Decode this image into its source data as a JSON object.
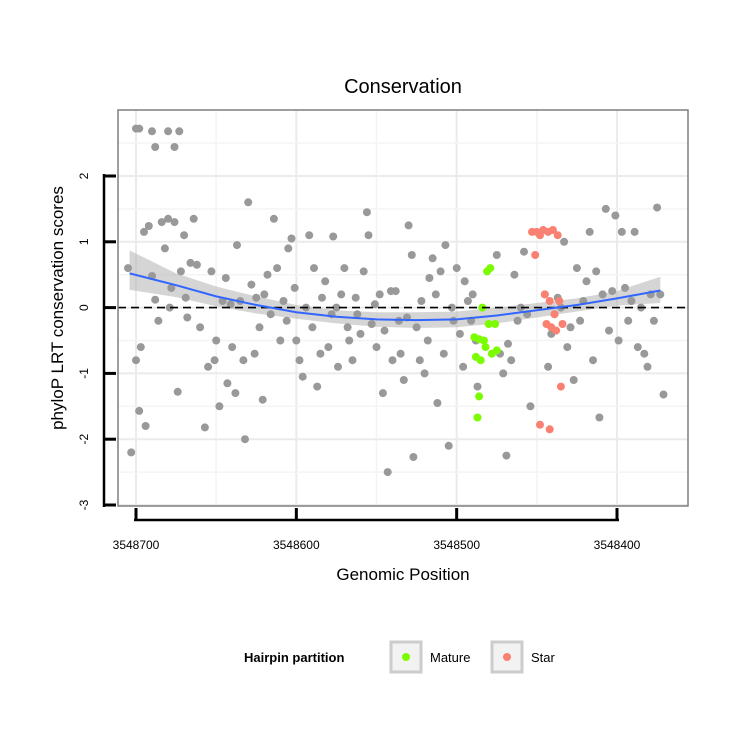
{
  "chart_data": {
    "type": "scatter",
    "title": "Conservation",
    "xlabel": "Genomic Position",
    "ylabel": "phyloP LRT conservation scores",
    "x_reversed": true,
    "xlim": [
      3548700,
      3548400
    ],
    "x_ticks": [
      3548700,
      3548600,
      3548500,
      3548400
    ],
    "x_tick_labels": [
      "3548700",
      "3548600",
      "3548500",
      "3548400"
    ],
    "y_ticks": [
      -3,
      -2,
      -1,
      0,
      1,
      2
    ],
    "y_tick_labels": [
      "-3",
      "-2",
      "-1",
      "0",
      "1",
      "2"
    ],
    "ylim": [
      -3,
      3
    ],
    "grid": true,
    "reference_line": {
      "y": 0,
      "style": "dashed"
    },
    "smooth": {
      "x": [
        3548704,
        3548675,
        3548650,
        3548625,
        3548600,
        3548575,
        3548550,
        3548525,
        3548500,
        3548475,
        3548450,
        3548425,
        3548400,
        3548373
      ],
      "y": [
        0.52,
        0.34,
        0.17,
        0.04,
        -0.07,
        -0.14,
        -0.18,
        -0.19,
        -0.18,
        -0.12,
        -0.04,
        0.04,
        0.14,
        0.26
      ],
      "band_lower": [
        0.27,
        0.16,
        0.02,
        -0.09,
        -0.17,
        -0.24,
        -0.29,
        -0.31,
        -0.3,
        -0.24,
        -0.15,
        -0.06,
        0.03,
        0.07
      ],
      "band_upper": [
        0.87,
        0.52,
        0.32,
        0.17,
        0.04,
        -0.04,
        -0.07,
        -0.07,
        -0.06,
        0.0,
        0.07,
        0.14,
        0.25,
        0.47
      ],
      "color": "#3366FF"
    },
    "legend": {
      "title": "Hairpin partition",
      "placement": "bottom",
      "items": [
        {
          "label": "Mature",
          "color": "#7CFC00"
        },
        {
          "label": "Star",
          "color": "#FA8072"
        }
      ]
    },
    "series": [
      {
        "partition": "other",
        "color": "#999999",
        "points": [
          [
            3548700,
            2.72
          ],
          [
            3548698,
            2.72
          ],
          [
            3548690,
            2.68
          ],
          [
            3548688,
            2.44
          ],
          [
            3548680,
            2.68
          ],
          [
            3548676,
            2.44
          ],
          [
            3548673,
            2.68
          ],
          [
            3548705,
            0.6
          ],
          [
            3548703,
            -2.2
          ],
          [
            3548700,
            -0.8
          ],
          [
            3548698,
            -1.57
          ],
          [
            3548697,
            -0.6
          ],
          [
            3548695,
            1.15
          ],
          [
            3548692,
            1.24
          ],
          [
            3548694,
            -1.8
          ],
          [
            3548690,
            0.48
          ],
          [
            3548688,
            0.12
          ],
          [
            3548686,
            -0.2
          ],
          [
            3548684,
            1.3
          ],
          [
            3548682,
            0.9
          ],
          [
            3548680,
            1.35
          ],
          [
            3548679,
            0.0
          ],
          [
            3548678,
            0.3
          ],
          [
            3548676,
            1.3
          ],
          [
            3548674,
            -1.28
          ],
          [
            3548672,
            0.55
          ],
          [
            3548670,
            1.1
          ],
          [
            3548669,
            0.15
          ],
          [
            3548668,
            -0.15
          ],
          [
            3548666,
            0.68
          ],
          [
            3548664,
            1.35
          ],
          [
            3548662,
            0.65
          ],
          [
            3548660,
            -0.3
          ],
          [
            3548657,
            -1.82
          ],
          [
            3548655,
            -0.9
          ],
          [
            3548653,
            0.55
          ],
          [
            3548651,
            -0.8
          ],
          [
            3548650,
            -0.5
          ],
          [
            3548648,
            -1.5
          ],
          [
            3548646,
            0.1
          ],
          [
            3548644,
            0.45
          ],
          [
            3548643,
            -1.15
          ],
          [
            3548641,
            0.05
          ],
          [
            3548640,
            -0.6
          ],
          [
            3548638,
            -1.3
          ],
          [
            3548637,
            0.95
          ],
          [
            3548635,
            0.1
          ],
          [
            3548633,
            -0.8
          ],
          [
            3548632,
            -2.0
          ],
          [
            3548630,
            1.6
          ],
          [
            3548628,
            0.35
          ],
          [
            3548626,
            -0.7
          ],
          [
            3548625,
            0.15
          ],
          [
            3548623,
            -0.3
          ],
          [
            3548621,
            -1.4
          ],
          [
            3548620,
            0.2
          ],
          [
            3548618,
            0.5
          ],
          [
            3548616,
            -0.1
          ],
          [
            3548614,
            1.35
          ],
          [
            3548612,
            0.6
          ],
          [
            3548610,
            -0.5
          ],
          [
            3548608,
            0.1
          ],
          [
            3548606,
            -0.2
          ],
          [
            3548605,
            0.9
          ],
          [
            3548603,
            1.05
          ],
          [
            3548601,
            0.3
          ],
          [
            3548600,
            -0.5
          ],
          [
            3548598,
            -0.8
          ],
          [
            3548596,
            -1.05
          ],
          [
            3548594,
            0.0
          ],
          [
            3548592,
            1.1
          ],
          [
            3548590,
            -0.3
          ],
          [
            3548589,
            0.6
          ],
          [
            3548587,
            -1.2
          ],
          [
            3548585,
            -0.7
          ],
          [
            3548584,
            0.15
          ],
          [
            3548582,
            0.4
          ],
          [
            3548580,
            -0.6
          ],
          [
            3548578,
            -0.1
          ],
          [
            3548577,
            1.08
          ],
          [
            3548575,
            0.0
          ],
          [
            3548574,
            -0.9
          ],
          [
            3548572,
            0.2
          ],
          [
            3548570,
            0.6
          ],
          [
            3548568,
            -0.3
          ],
          [
            3548567,
            -0.5
          ],
          [
            3548565,
            -0.8
          ],
          [
            3548563,
            0.15
          ],
          [
            3548562,
            -0.1
          ],
          [
            3548560,
            -0.4
          ],
          [
            3548558,
            0.55
          ],
          [
            3548556,
            1.45
          ],
          [
            3548555,
            1.1
          ],
          [
            3548553,
            -0.25
          ],
          [
            3548551,
            0.05
          ],
          [
            3548550,
            -0.6
          ],
          [
            3548548,
            0.2
          ],
          [
            3548546,
            -1.3
          ],
          [
            3548545,
            -0.35
          ],
          [
            3548543,
            -2.5
          ],
          [
            3548541,
            0.25
          ],
          [
            3548540,
            -0.8
          ],
          [
            3548538,
            0.25
          ],
          [
            3548536,
            -0.2
          ],
          [
            3548535,
            -0.7
          ],
          [
            3548533,
            -1.1
          ],
          [
            3548531,
            -0.15
          ],
          [
            3548530,
            1.25
          ],
          [
            3548528,
            0.8
          ],
          [
            3548527,
            -2.27
          ],
          [
            3548525,
            -0.3
          ],
          [
            3548523,
            -0.8
          ],
          [
            3548522,
            0.1
          ],
          [
            3548520,
            -1.0
          ],
          [
            3548518,
            -0.5
          ],
          [
            3548517,
            0.45
          ],
          [
            3548515,
            0.75
          ],
          [
            3548513,
            0.2
          ],
          [
            3548512,
            -1.45
          ],
          [
            3548510,
            0.55
          ],
          [
            3548508,
            -0.7
          ],
          [
            3548507,
            0.95
          ],
          [
            3548505,
            -2.1
          ],
          [
            3548503,
            0.0
          ],
          [
            3548502,
            -0.2
          ],
          [
            3548500,
            0.6
          ],
          [
            3548498,
            -0.4
          ],
          [
            3548496,
            -0.9
          ],
          [
            3548495,
            0.4
          ],
          [
            3548493,
            0.1
          ],
          [
            3548491,
            -0.2
          ],
          [
            3548490,
            0.2
          ],
          [
            3548488,
            -0.5
          ],
          [
            3548487,
            -1.2
          ],
          [
            3548475,
            0.8
          ],
          [
            3548473,
            -0.7
          ],
          [
            3548471,
            -1.0
          ],
          [
            3548469,
            -2.25
          ],
          [
            3548468,
            -0.55
          ],
          [
            3548466,
            -0.8
          ],
          [
            3548464,
            0.5
          ],
          [
            3548462,
            -0.2
          ],
          [
            3548460,
            0.0
          ],
          [
            3548458,
            0.85
          ],
          [
            3548456,
            -0.1
          ],
          [
            3548454,
            -1.5
          ],
          [
            3548445,
            0.2
          ],
          [
            3548443,
            -0.9
          ],
          [
            3548441,
            -0.4
          ],
          [
            3548439,
            -0.1
          ],
          [
            3548437,
            0.15
          ],
          [
            3548435,
            0.0
          ],
          [
            3548433,
            1.0
          ],
          [
            3548431,
            -0.6
          ],
          [
            3548429,
            -0.3
          ],
          [
            3548427,
            -1.1
          ],
          [
            3548425,
            0.6
          ],
          [
            3548423,
            -0.2
          ],
          [
            3548421,
            0.1
          ],
          [
            3548419,
            0.4
          ],
          [
            3548417,
            1.15
          ],
          [
            3548415,
            -0.8
          ],
          [
            3548413,
            0.55
          ],
          [
            3548411,
            -1.67
          ],
          [
            3548409,
            0.2
          ],
          [
            3548407,
            1.5
          ],
          [
            3548405,
            -0.35
          ],
          [
            3548403,
            0.25
          ],
          [
            3548401,
            1.4
          ],
          [
            3548399,
            -0.5
          ],
          [
            3548397,
            1.15
          ],
          [
            3548395,
            0.3
          ],
          [
            3548393,
            -0.2
          ],
          [
            3548391,
            0.1
          ],
          [
            3548389,
            1.15
          ],
          [
            3548387,
            -0.6
          ],
          [
            3548385,
            0.0
          ],
          [
            3548383,
            -0.7
          ],
          [
            3548381,
            -0.9
          ],
          [
            3548379,
            0.2
          ],
          [
            3548377,
            -0.2
          ],
          [
            3548375,
            1.52
          ],
          [
            3548373,
            0.2
          ],
          [
            3548371,
            -1.32
          ]
        ]
      },
      {
        "partition": "Mature",
        "color": "#7CFC00",
        "points": [
          [
            3548489,
            -0.45
          ],
          [
            3548488,
            -0.75
          ],
          [
            3548487,
            -1.67
          ],
          [
            3548486,
            -1.35
          ],
          [
            3548485,
            -0.8
          ],
          [
            3548484,
            0.0
          ],
          [
            3548483,
            -0.5
          ],
          [
            3548482,
            -0.6
          ],
          [
            3548481,
            0.55
          ],
          [
            3548480,
            -0.25
          ],
          [
            3548479,
            0.6
          ],
          [
            3548478,
            -0.7
          ],
          [
            3548476,
            -0.25
          ],
          [
            3548475,
            -0.65
          ],
          [
            3548486,
            -0.48
          ]
        ]
      },
      {
        "partition": "Star",
        "color": "#FA8072",
        "points": [
          [
            3548453,
            1.15
          ],
          [
            3548451,
            0.8
          ],
          [
            3548450,
            1.15
          ],
          [
            3548448,
            1.1
          ],
          [
            3548446,
            1.18
          ],
          [
            3548445,
            0.2
          ],
          [
            3548444,
            -0.25
          ],
          [
            3548443,
            1.15
          ],
          [
            3548442,
            0.1
          ],
          [
            3548441,
            -0.3
          ],
          [
            3548440,
            1.18
          ],
          [
            3548439,
            -0.1
          ],
          [
            3548438,
            -0.35
          ],
          [
            3548437,
            1.1
          ],
          [
            3548436,
            0.1
          ],
          [
            3548435,
            -1.2
          ],
          [
            3548434,
            -0.25
          ],
          [
            3548448,
            -1.78
          ],
          [
            3548442,
            -1.85
          ]
        ]
      }
    ]
  }
}
